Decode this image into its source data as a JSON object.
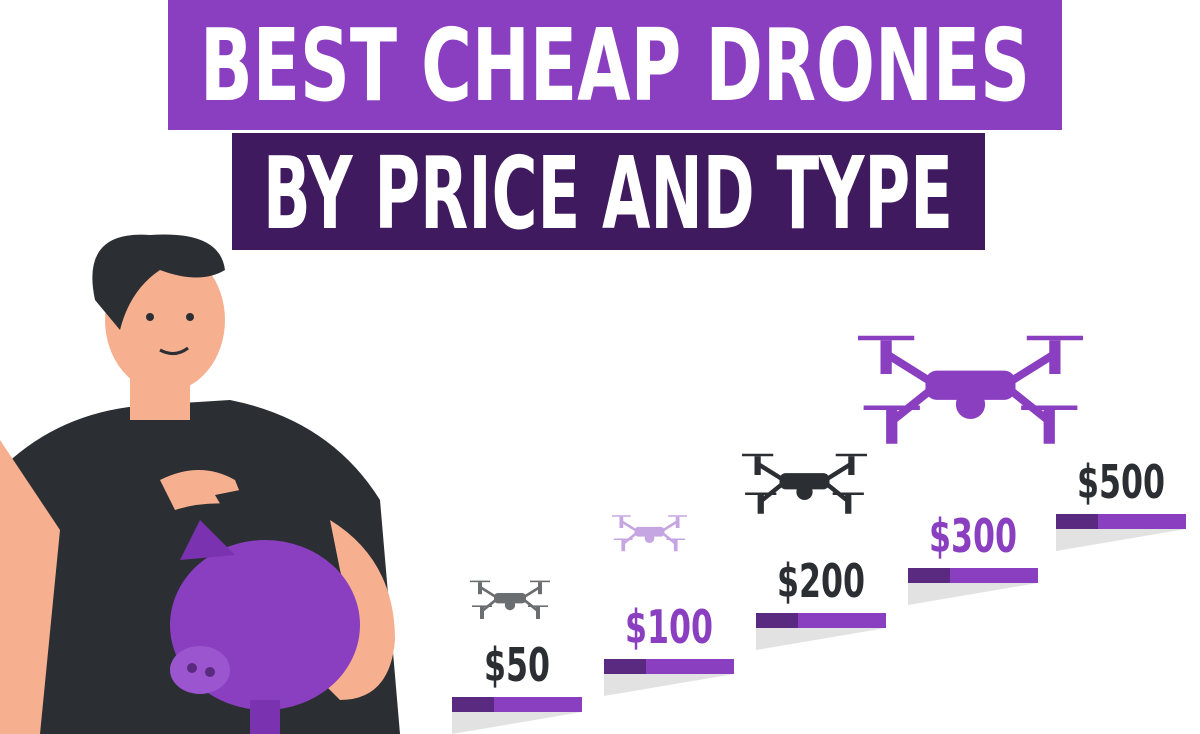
{
  "title": {
    "line1": "BEST CHEAP DRONES",
    "line2": "BY PRICE AND TYPE"
  },
  "prices": [
    "$50",
    "$100",
    "$200",
    "$300",
    "$500"
  ]
}
